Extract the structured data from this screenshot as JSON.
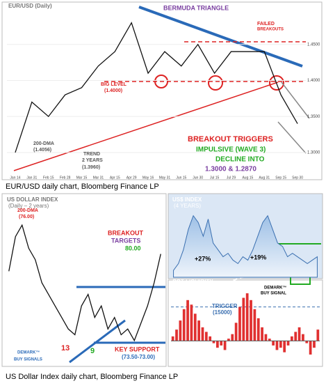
{
  "chart_data": [
    {
      "type": "line",
      "title": "EUR/USD (Daily)",
      "categories": [
        "Jan 14",
        "Jan 31",
        "Feb 15",
        "Feb 28",
        "Mar 15",
        "Mar 31",
        "Apr 15",
        "Apr 29",
        "May 16",
        "May 31",
        "Jun 15",
        "Jun 30",
        "Jul 15",
        "Jul 29",
        "Aug 15",
        "Aug 31",
        "Sep 15",
        "Sep 30"
      ],
      "values": [
        1.3,
        1.37,
        1.35,
        1.38,
        1.39,
        1.42,
        1.44,
        1.48,
        1.41,
        1.44,
        1.42,
        1.45,
        1.41,
        1.44,
        1.44,
        1.44,
        1.38,
        1.34
      ],
      "ylim": [
        1.27,
        1.5
      ],
      "yticks": [
        {
          "value": 1.3,
          "label": "1.3000"
        },
        {
          "value": 1.35,
          "label": "1.3500"
        },
        {
          "value": 1.4,
          "label": "1.4000"
        },
        {
          "value": 1.45,
          "label": "1.4500"
        }
      ],
      "color": "#111111"
    },
    {
      "type": "line",
      "title": "US DOLLAR INDEX",
      "subtitle": "(Daily – 2 years)",
      "values": [
        79,
        82,
        83,
        81,
        80,
        78,
        77,
        76,
        75,
        74,
        73.5,
        76,
        77,
        75,
        76,
        74,
        75,
        73.5,
        74,
        73,
        74.5,
        76,
        78,
        80.5
      ],
      "ylim": [
        71,
        85
      ],
      "color": "#111111"
    },
    {
      "type": "area",
      "title": "US$ INDEX",
      "subtitle": "(4 YEARS)",
      "values": [
        72,
        74,
        78,
        84,
        88,
        86,
        82,
        87,
        80,
        78,
        76,
        77,
        75,
        74,
        76,
        75,
        78,
        82,
        86,
        88,
        84,
        80,
        79,
        76,
        77,
        76,
        75,
        74,
        75,
        76
      ],
      "ylim": [
        70,
        92
      ],
      "color": "#3a6fb0"
    },
    {
      "type": "bar",
      "title": "COT LIQUIDITY",
      "values": [
        2000,
        5000,
        9000,
        14000,
        18000,
        16000,
        12000,
        9000,
        6000,
        4000,
        2000,
        -1000,
        -3000,
        -2000,
        -4000,
        1000,
        3000,
        8000,
        15000,
        19000,
        21000,
        18000,
        14000,
        10000,
        6000,
        3000,
        1000,
        -2000,
        -4000,
        -3000,
        -5000,
        -2000,
        2000,
        4000,
        6000,
        3000,
        -1000,
        -6000,
        -3000,
        5000
      ],
      "ylim": [
        -10000,
        25000
      ],
      "reference_line": 15000,
      "color": "#e03030"
    }
  ],
  "annotations": [
    "BERMUDA TRIANGLE",
    "FAILED",
    "BREAKOUTS",
    "BIG LEVEL",
    "(1.4000)",
    "200-DMA",
    "(1.4056)",
    "TREND",
    "2 YEARS",
    "(1.3960)",
    "BREAKOUT TRIGGERS",
    "IMPULSIVE (WAVE 3)",
    "DECLINE INTO",
    "1.3000 & 1.2870",
    "200-DMA",
    "(76.00)",
    "BREAKOUT",
    "TARGETS",
    "80.00",
    "13",
    "9",
    "KEY SUPPORT",
    "(73.50-73.00)",
    "DEMARK™",
    "BUY SIGNALS",
    "+27%",
    "+19%",
    "DEMARK™",
    "BUY SIGNAL",
    "TRIGGER",
    "(15000)"
  ],
  "captions": [
    "EUR/USD daily chart, Bloomberg Finance LP",
    "US Dollar Index daily chart, Bloomberg Finance LP"
  ]
}
